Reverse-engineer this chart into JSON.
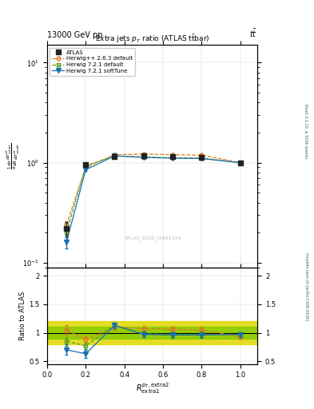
{
  "title_top": "13000 GeV pp",
  "title_top_right": "tt̅",
  "plot_title": "Extra jets p$_T$ ratio (ATLAS t̅t̅bar)",
  "watermark": "ATLAS_2020_I1801434",
  "right_label_top": "Rivet 3.1.10, ≥ 500k events",
  "right_label_bottom": "mcplots.cern.ch [arXiv:1306.3436]",
  "ylabel_ratio": "Ratio to ATLAS",
  "x_values": [
    0.1,
    0.2,
    0.35,
    0.5,
    0.65,
    0.8,
    1.0
  ],
  "atlas_y": [
    0.22,
    0.95,
    1.15,
    1.18,
    1.15,
    1.13,
    1.0
  ],
  "atlas_yerr": [
    0.035,
    0.04,
    0.04,
    0.04,
    0.04,
    0.04,
    0.035
  ],
  "herwig_pp_y": [
    0.24,
    0.9,
    1.2,
    1.22,
    1.2,
    1.19,
    1.0
  ],
  "herwig_pp_yerr": [
    0.02,
    0.03,
    0.03,
    0.03,
    0.03,
    0.03,
    0.02
  ],
  "herwig721_default_y": [
    0.2,
    0.93,
    1.17,
    1.14,
    1.12,
    1.11,
    1.0
  ],
  "herwig721_default_yerr": [
    0.02,
    0.03,
    0.03,
    0.03,
    0.03,
    0.03,
    0.02
  ],
  "herwig721_soft_y": [
    0.16,
    0.85,
    1.17,
    1.13,
    1.11,
    1.1,
    1.0
  ],
  "herwig721_soft_yerr": [
    0.02,
    0.03,
    0.03,
    0.03,
    0.03,
    0.03,
    0.02
  ],
  "ratio_herwig_pp": [
    1.05,
    0.88,
    1.1,
    1.07,
    1.06,
    1.05,
    0.93
  ],
  "ratio_herwig_pp_err": [
    0.08,
    0.06,
    0.05,
    0.05,
    0.05,
    0.05,
    0.04
  ],
  "ratio_herwig721_default": [
    0.85,
    0.77,
    1.13,
    0.98,
    0.97,
    0.97,
    0.97
  ],
  "ratio_herwig721_default_err": [
    0.08,
    0.06,
    0.05,
    0.05,
    0.05,
    0.05,
    0.04
  ],
  "ratio_herwig721_soft": [
    0.7,
    0.63,
    1.13,
    0.97,
    0.96,
    0.96,
    0.97
  ],
  "ratio_herwig721_soft_err": [
    0.09,
    0.07,
    0.05,
    0.05,
    0.05,
    0.05,
    0.04
  ],
  "band_yellow_lo": 0.8,
  "band_yellow_hi": 1.2,
  "band_green_lo": 0.9,
  "band_green_hi": 1.1,
  "color_atlas": "#222222",
  "color_herwig_pp": "#e07820",
  "color_herwig721_default": "#5a9e20",
  "color_herwig721_soft": "#1870b0",
  "color_band_yellow": "#e0d800",
  "color_band_green": "#88cc00",
  "ylim_main": [
    0.09,
    15
  ],
  "ylim_ratio": [
    0.45,
    2.15
  ],
  "xlim": [
    0.0,
    1.09
  ]
}
